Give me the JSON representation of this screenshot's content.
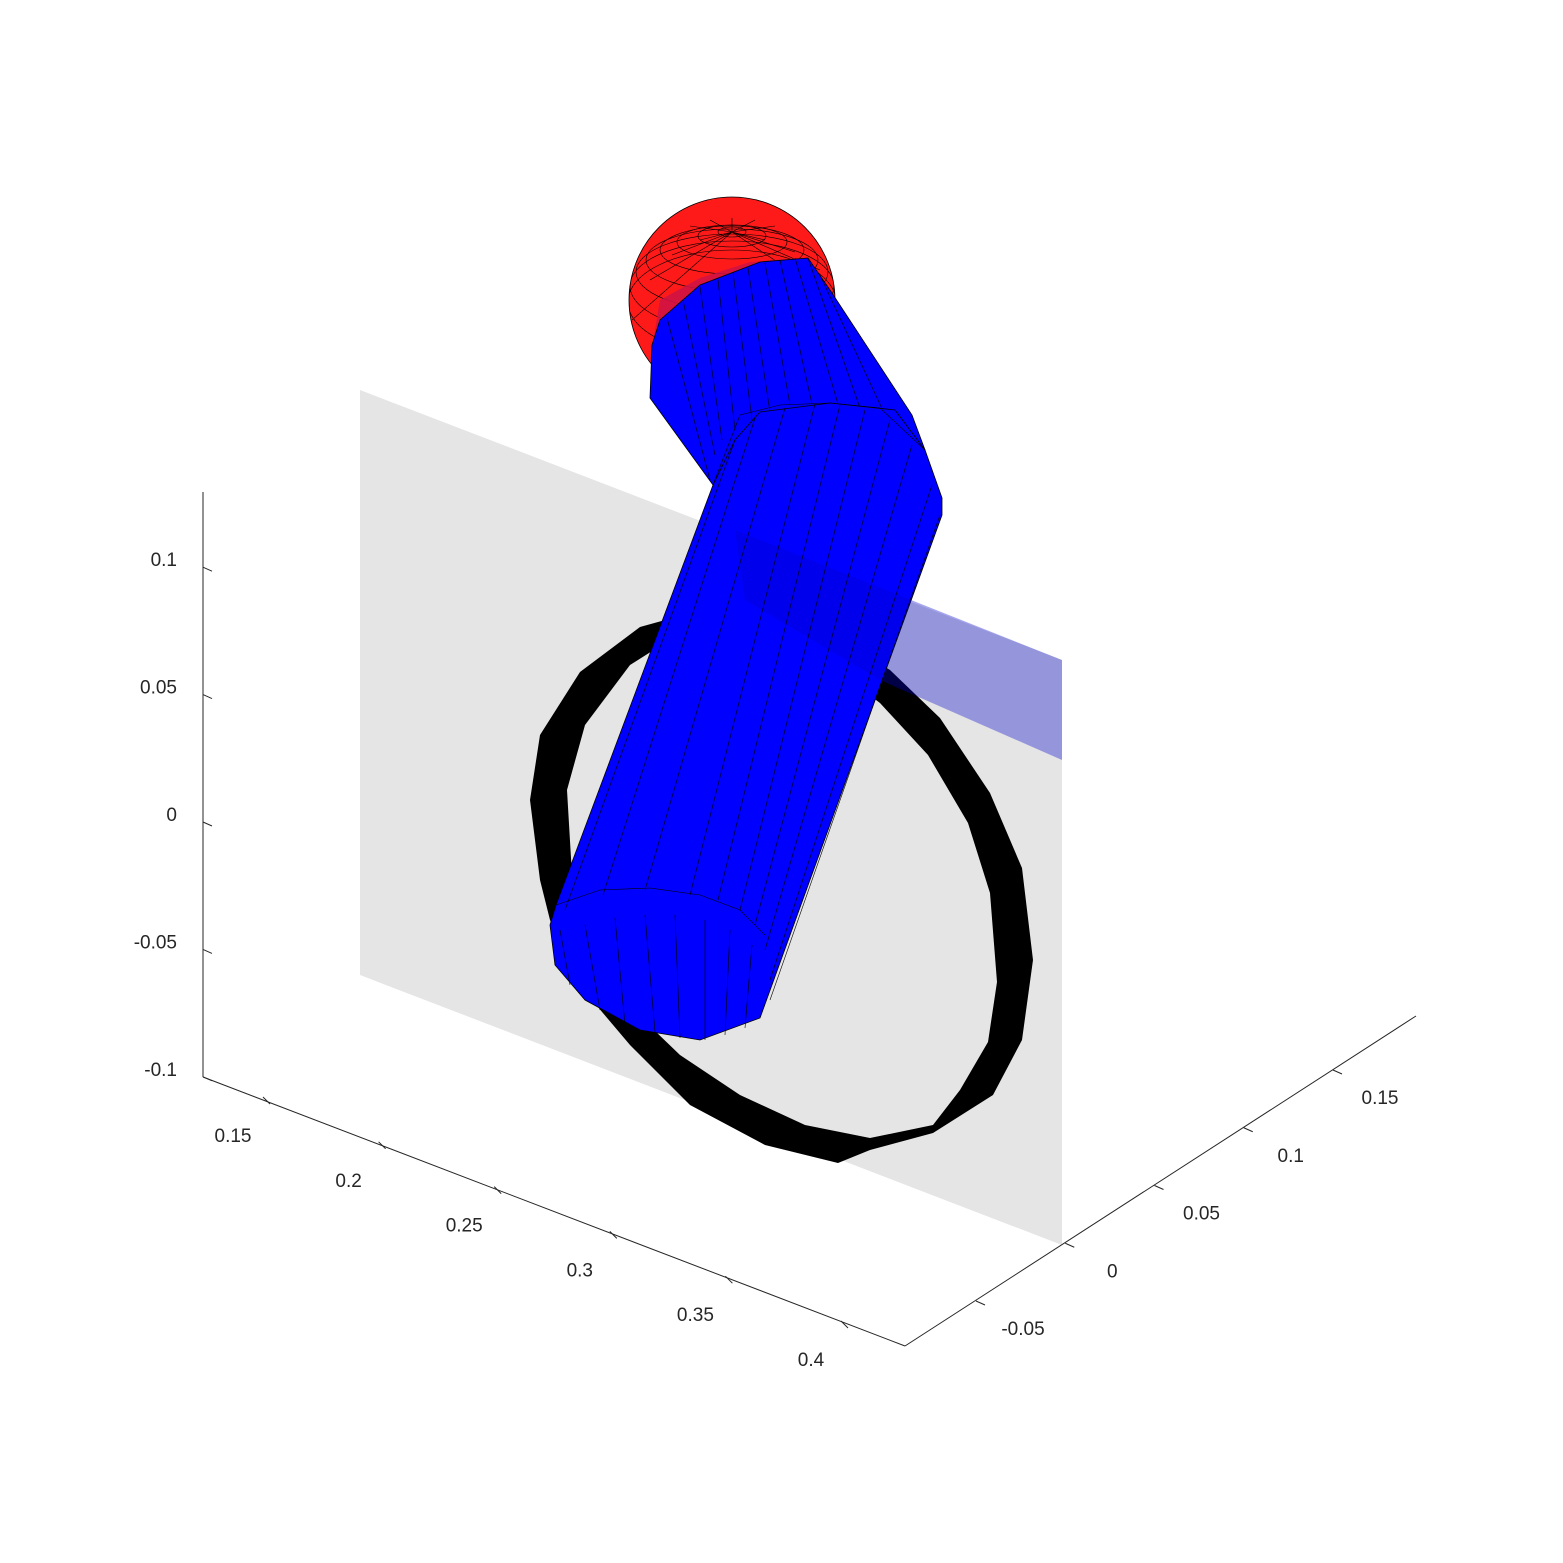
{
  "chart_data": {
    "type": "3d-surface",
    "title": "",
    "xlabel": "",
    "ylabel": "",
    "zlabel": "",
    "grid": false,
    "axes": {
      "x": {
        "ticks": [
          "0.15",
          "0.2",
          "0.25",
          "0.3",
          "0.35",
          "0.4"
        ]
      },
      "y": {
        "ticks": [
          "-0.05",
          "0",
          "0.05",
          "0.1",
          "0.15"
        ]
      },
      "z": {
        "ticks": [
          "0.1",
          "0.05",
          "0",
          "-0.05",
          "-0.1"
        ]
      }
    },
    "objects": [
      {
        "name": "",
        "kind": "plane",
        "color": "#e5e5e5"
      },
      {
        "name": "",
        "kind": "ring",
        "color": "#000000"
      },
      {
        "name": "",
        "kind": "cylinder",
        "color": "#0000ff"
      },
      {
        "name": "",
        "kind": "cylinder",
        "color": "#0000ff"
      },
      {
        "name": "",
        "kind": "sphere",
        "color": "#ff0000"
      }
    ]
  }
}
